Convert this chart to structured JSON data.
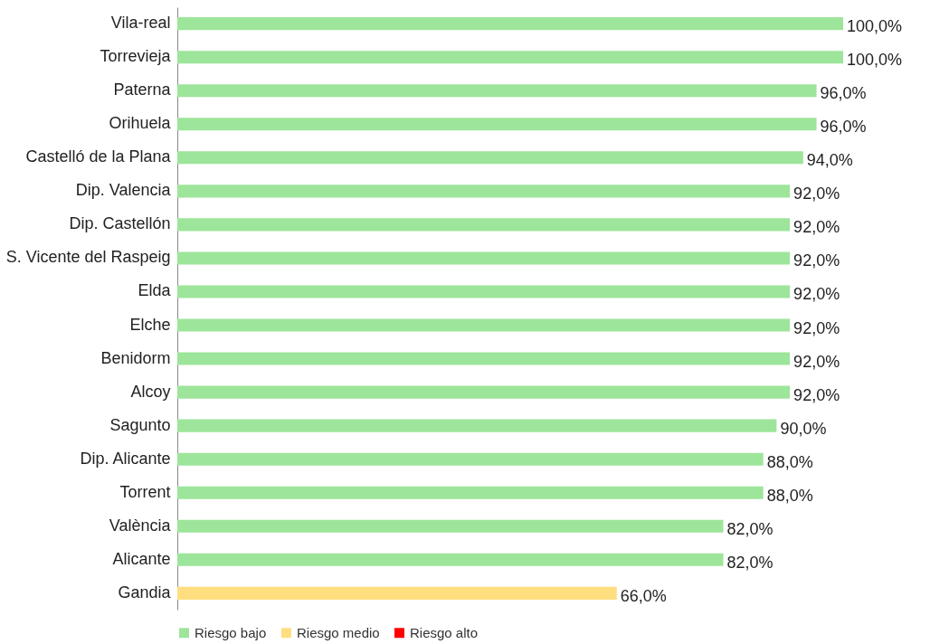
{
  "chart_data": {
    "type": "bar",
    "orientation": "horizontal",
    "categories": [
      "Vila-real",
      "Torrevieja",
      "Paterna",
      "Orihuela",
      "Castelló de la Plana",
      "Dip. Valencia",
      "Dip. Castellón",
      "S. Vicente del Raspeig",
      "Elda",
      "Elche",
      "Benidorm",
      "Alcoy",
      "Sagunto",
      "Dip. Alicante",
      "Torrent",
      "València",
      "Alicante",
      "Gandia"
    ],
    "series": [
      {
        "name": "Riesgo bajo",
        "color": "#9de59a",
        "values": [
          100,
          100,
          96,
          96,
          94,
          92,
          92,
          92,
          92,
          92,
          92,
          92,
          90,
          88,
          88,
          82,
          82,
          null
        ],
        "value_labels": [
          "100,0%",
          "100,0%",
          "96,0%",
          "96,0%",
          "94,0%",
          "92,0%",
          "92,0%",
          "92,0%",
          "92,0%",
          "92,0%",
          "92,0%",
          "92,0%",
          "90,0%",
          "88,0%",
          "88,0%",
          "82,0%",
          "82,0%",
          null
        ]
      },
      {
        "name": "Riesgo medio",
        "color": "#ffde7f",
        "values": [
          null,
          null,
          null,
          null,
          null,
          null,
          null,
          null,
          null,
          null,
          null,
          null,
          null,
          null,
          null,
          null,
          null,
          66
        ],
        "value_labels": [
          null,
          null,
          null,
          null,
          null,
          null,
          null,
          null,
          null,
          null,
          null,
          null,
          null,
          null,
          null,
          null,
          null,
          "66,0%"
        ]
      },
      {
        "name": "Riesgo alto",
        "color": "#ff0000",
        "values": [
          null,
          null,
          null,
          null,
          null,
          null,
          null,
          null,
          null,
          null,
          null,
          null,
          null,
          null,
          null,
          null,
          null,
          null
        ]
      }
    ],
    "xlim": [
      0,
      100
    ],
    "tick_labels": "y",
    "legend": "bottom"
  }
}
